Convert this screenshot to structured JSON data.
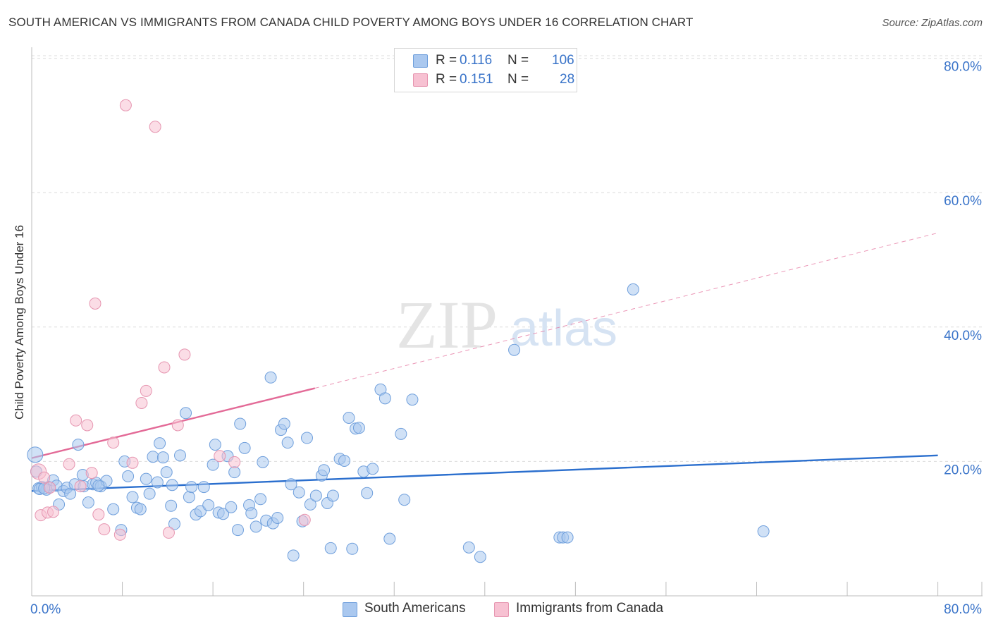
{
  "title": "SOUTH AMERICAN VS IMMIGRANTS FROM CANADA CHILD POVERTY AMONG BOYS UNDER 16 CORRELATION CHART",
  "source": "Source: ZipAtlas.com",
  "watermark": {
    "zip": "ZIP",
    "atlas": "atlas"
  },
  "legend": {
    "rows": [
      {
        "r_label": "R =",
        "r_value": "0.116",
        "n_label": "N =",
        "n_value": "106",
        "color": "#aac8ef",
        "stroke": "#6f9fdc"
      },
      {
        "r_label": "R =",
        "r_value": "0.151",
        "n_label": "N =",
        "n_value": "28",
        "color": "#f7c1d2",
        "stroke": "#e695b0"
      }
    ]
  },
  "bottom_legend": [
    {
      "label": "South Americans",
      "color": "#aac8ef",
      "stroke": "#6f9fdc"
    },
    {
      "label": "Immigrants from Canada",
      "color": "#f7c1d2",
      "stroke": "#e695b0"
    }
  ],
  "chart_data": {
    "type": "scatter",
    "title": "SOUTH AMERICAN VS IMMIGRANTS FROM CANADA CHILD POVERTY AMONG BOYS UNDER 16 CORRELATION CHART",
    "xlabel": "",
    "ylabel": "Child Poverty Among Boys Under 16",
    "xlim": [
      0,
      84
    ],
    "ylim": [
      0,
      80
    ],
    "x_tick_labels": [
      {
        "value": 0,
        "label": "0.0%"
      },
      {
        "value": 80,
        "label": "80.0%"
      }
    ],
    "y_tick_labels": [
      {
        "value": 20,
        "label": "20.0%"
      },
      {
        "value": 40,
        "label": "40.0%"
      },
      {
        "value": 60,
        "label": "60.0%"
      },
      {
        "value": 80,
        "label": "80.0%"
      }
    ],
    "grid": true,
    "series": [
      {
        "name": "South Americans",
        "color": "#aac8ef",
        "stroke": "#6f9fdc",
        "trend": {
          "x0": 0,
          "y0": 15.6,
          "x1": 80,
          "y1": 20.9,
          "color": "#2b6fce",
          "dashed_to": null
        },
        "points": [
          [
            0.3,
            21
          ],
          [
            0.4,
            18.5
          ],
          [
            0.6,
            16
          ],
          [
            0.9,
            16.2
          ],
          [
            1.3,
            15.8
          ],
          [
            1.5,
            16.2
          ],
          [
            1.9,
            17.2
          ],
          [
            2.2,
            16.4
          ],
          [
            2.4,
            13.6
          ],
          [
            2.8,
            15.6
          ],
          [
            3.1,
            16.1
          ],
          [
            3.4,
            15.2
          ],
          [
            3.8,
            16.6
          ],
          [
            4.1,
            22.5
          ],
          [
            4.5,
            18
          ],
          [
            4.6,
            16.3
          ],
          [
            5.0,
            13.9
          ],
          [
            5.4,
            16.6
          ],
          [
            5.7,
            16.8
          ],
          [
            6.1,
            16.3
          ],
          [
            6.6,
            17.1
          ],
          [
            7.2,
            12.9
          ],
          [
            7.9,
            9.8
          ],
          [
            8.2,
            20
          ],
          [
            8.5,
            17.8
          ],
          [
            8.9,
            14.7
          ],
          [
            9.3,
            13.1
          ],
          [
            9.6,
            12.9
          ],
          [
            10.1,
            17.4
          ],
          [
            10.4,
            15.2
          ],
          [
            10.7,
            20.7
          ],
          [
            11.1,
            16.9
          ],
          [
            11.3,
            22.7
          ],
          [
            11.6,
            20.6
          ],
          [
            11.9,
            18.4
          ],
          [
            12.3,
            13.4
          ],
          [
            12.4,
            16.5
          ],
          [
            12.6,
            10.7
          ],
          [
            13.1,
            20.9
          ],
          [
            13.6,
            27.2
          ],
          [
            13.9,
            14.7
          ],
          [
            14.1,
            16.2
          ],
          [
            14.5,
            12.1
          ],
          [
            14.9,
            12.6
          ],
          [
            15.2,
            16.2
          ],
          [
            15.6,
            13.5
          ],
          [
            16.0,
            19.5
          ],
          [
            16.2,
            22.5
          ],
          [
            16.5,
            12.4
          ],
          [
            16.9,
            12.2
          ],
          [
            17.3,
            20.8
          ],
          [
            17.6,
            13.2
          ],
          [
            17.9,
            18.4
          ],
          [
            18.2,
            9.8
          ],
          [
            18.4,
            25.6
          ],
          [
            18.8,
            22
          ],
          [
            19.2,
            13.5
          ],
          [
            19.4,
            12.3
          ],
          [
            19.8,
            10.3
          ],
          [
            20.2,
            14.4
          ],
          [
            20.4,
            19.9
          ],
          [
            20.7,
            11.2
          ],
          [
            21.1,
            32.5
          ],
          [
            21.3,
            10.8
          ],
          [
            21.7,
            11.6
          ],
          [
            22.0,
            24.7
          ],
          [
            22.3,
            25.6
          ],
          [
            22.6,
            22.8
          ],
          [
            22.9,
            16.6
          ],
          [
            23.1,
            6
          ],
          [
            23.6,
            15.4
          ],
          [
            23.9,
            11.1
          ],
          [
            24.3,
            23.5
          ],
          [
            24.6,
            13.6
          ],
          [
            25.1,
            14.9
          ],
          [
            25.6,
            17.9
          ],
          [
            25.8,
            18.7
          ],
          [
            26.1,
            13.8
          ],
          [
            26.4,
            7.1
          ],
          [
            26.6,
            14.9
          ],
          [
            27.2,
            20.4
          ],
          [
            27.6,
            20.1
          ],
          [
            28.0,
            26.5
          ],
          [
            28.3,
            7
          ],
          [
            28.6,
            24.9
          ],
          [
            28.9,
            25
          ],
          [
            29.3,
            18.5
          ],
          [
            29.6,
            15.3
          ],
          [
            30.1,
            18.9
          ],
          [
            30.8,
            30.7
          ],
          [
            31.2,
            29.4
          ],
          [
            31.6,
            8.5
          ],
          [
            32.6,
            24.1
          ],
          [
            32.9,
            14.3
          ],
          [
            33.6,
            29.2
          ],
          [
            38.6,
            7.2
          ],
          [
            39.6,
            5.8
          ],
          [
            42.6,
            36.6
          ],
          [
            46.6,
            8.7
          ],
          [
            46.9,
            8.7
          ],
          [
            47.3,
            8.7
          ],
          [
            53.1,
            45.6
          ],
          [
            64.6,
            9.6
          ],
          [
            0.7,
            15.9
          ],
          [
            1.1,
            16
          ],
          [
            5.9,
            16.4
          ]
        ]
      },
      {
        "name": "Immigrants from Canada",
        "color": "#f7c1d2",
        "stroke": "#e695b0",
        "trend": {
          "x0": 0,
          "y0": 20.5,
          "x1": 25,
          "y1": 30.9,
          "color": "#e36a97",
          "dashed_to": {
            "x": 80,
            "y": 54.0
          }
        },
        "points": [
          [
            0.6,
            18.5
          ],
          [
            0.8,
            12
          ],
          [
            1.1,
            17.6
          ],
          [
            1.4,
            12.4
          ],
          [
            1.6,
            16.1
          ],
          [
            1.9,
            12.5
          ],
          [
            3.3,
            19.6
          ],
          [
            3.9,
            26.1
          ],
          [
            4.3,
            16.3
          ],
          [
            4.9,
            25.4
          ],
          [
            5.3,
            18.3
          ],
          [
            5.6,
            43.5
          ],
          [
            5.9,
            12.1
          ],
          [
            6.4,
            9.9
          ],
          [
            7.2,
            22.8
          ],
          [
            7.8,
            9.1
          ],
          [
            8.3,
            73
          ],
          [
            8.9,
            19.8
          ],
          [
            9.7,
            28.7
          ],
          [
            10.1,
            30.5
          ],
          [
            10.9,
            69.8
          ],
          [
            11.7,
            34
          ],
          [
            12.1,
            9.4
          ],
          [
            12.9,
            25.4
          ],
          [
            13.5,
            35.9
          ],
          [
            16.6,
            20.8
          ],
          [
            17.9,
            19.9
          ],
          [
            24.1,
            11.3
          ]
        ]
      }
    ]
  }
}
